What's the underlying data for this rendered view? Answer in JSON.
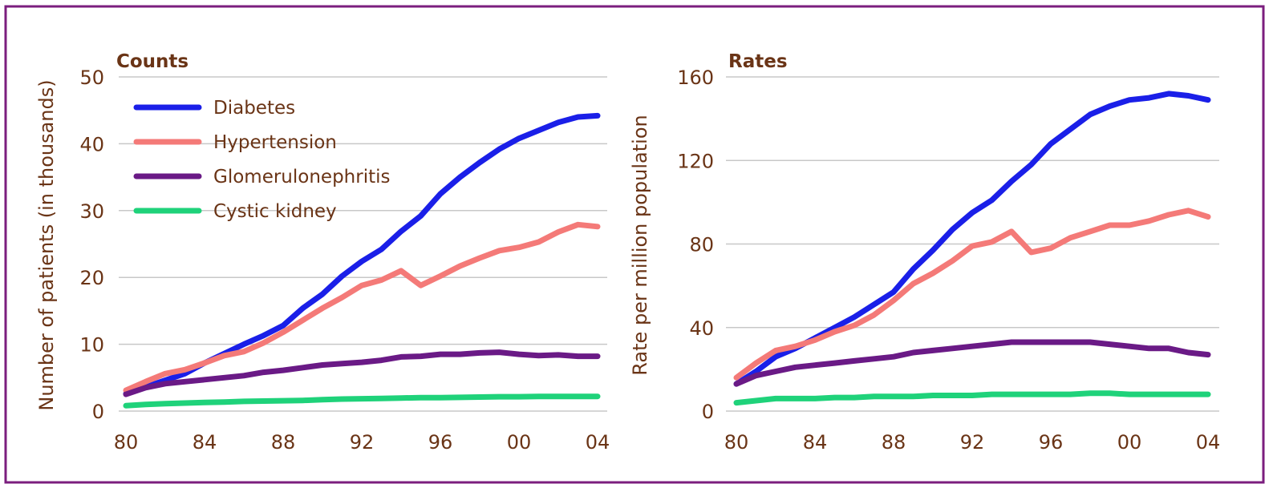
{
  "colors": {
    "frame": "#7b1e7e",
    "text": "#6a3416",
    "grid": "#c8c8c8",
    "diabetes": "#1a1fe8",
    "hypertension": "#f47a78",
    "glomerulonephritis": "#6a1a86",
    "cystic": "#1fd27a"
  },
  "legend": {
    "placement": "top-left of left panel",
    "items": [
      "Diabetes",
      "Hypertension",
      "Glomerulonephritis",
      "Cystic kidney"
    ]
  },
  "chart_data": [
    {
      "type": "line",
      "title": "Counts",
      "xlabel": "",
      "ylabel": "Number of patients (in thousands)",
      "x": [
        1980,
        1981,
        1982,
        1983,
        1984,
        1985,
        1986,
        1987,
        1988,
        1989,
        1990,
        1991,
        1992,
        1993,
        1994,
        1995,
        1996,
        1997,
        1998,
        1999,
        2000,
        2001,
        2002,
        2003,
        2004
      ],
      "xticks": [
        "80",
        "84",
        "88",
        "92",
        "96",
        "00",
        "04"
      ],
      "xtick_values": [
        1980,
        1984,
        1988,
        1992,
        1996,
        2000,
        2004
      ],
      "yticks": [
        "0",
        "10",
        "20",
        "30",
        "40",
        "50"
      ],
      "ylim": [
        0,
        50
      ],
      "grid": true,
      "series": [
        {
          "name": "Diabetes",
          "color": "#1a1fe8",
          "values": [
            2.6,
            3.6,
            4.6,
            5.6,
            7.2,
            8.6,
            10.0,
            11.3,
            12.8,
            15.4,
            17.5,
            20.2,
            22.4,
            24.2,
            26.9,
            29.2,
            32.5,
            35.0,
            37.2,
            39.2,
            40.8,
            42.0,
            43.2,
            44.0,
            44.2
          ]
        },
        {
          "name": "Hypertension",
          "color": "#f47a78",
          "values": [
            3.1,
            4.4,
            5.6,
            6.2,
            7.2,
            8.3,
            8.9,
            10.2,
            11.8,
            13.6,
            15.4,
            17.0,
            18.8,
            19.6,
            21.0,
            18.8,
            20.2,
            21.7,
            22.9,
            24.0,
            24.5,
            25.3,
            26.8,
            27.9,
            27.6
          ]
        },
        {
          "name": "Glomerulonephritis",
          "color": "#6a1a86",
          "values": [
            2.5,
            3.5,
            4.1,
            4.4,
            4.7,
            5.0,
            5.3,
            5.8,
            6.1,
            6.5,
            6.9,
            7.1,
            7.3,
            7.6,
            8.1,
            8.2,
            8.5,
            8.5,
            8.7,
            8.8,
            8.5,
            8.3,
            8.4,
            8.2,
            8.2
          ]
        },
        {
          "name": "Cystic kidney",
          "color": "#1fd27a",
          "values": [
            0.8,
            1.0,
            1.1,
            1.2,
            1.3,
            1.35,
            1.45,
            1.5,
            1.55,
            1.6,
            1.7,
            1.8,
            1.85,
            1.9,
            1.95,
            2.0,
            2.0,
            2.05,
            2.1,
            2.15,
            2.15,
            2.2,
            2.2,
            2.2,
            2.2
          ]
        }
      ]
    },
    {
      "type": "line",
      "title": "Rates",
      "xlabel": "",
      "ylabel": "Rate per million population",
      "x": [
        1980,
        1981,
        1982,
        1983,
        1984,
        1985,
        1986,
        1987,
        1988,
        1989,
        1990,
        1991,
        1992,
        1993,
        1994,
        1995,
        1996,
        1997,
        1998,
        1999,
        2000,
        2001,
        2002,
        2003,
        2004
      ],
      "xticks": [
        "80",
        "84",
        "88",
        "92",
        "96",
        "00",
        "04"
      ],
      "xtick_values": [
        1980,
        1984,
        1988,
        1992,
        1996,
        2000,
        2004
      ],
      "yticks": [
        "0",
        "40",
        "80",
        "120",
        "160"
      ],
      "ylim": [
        0,
        160
      ],
      "grid": true,
      "series": [
        {
          "name": "Diabetes",
          "color": "#1a1fe8",
          "values": [
            13,
            19,
            26,
            30,
            35,
            40,
            45,
            51,
            57,
            68,
            77,
            87,
            95,
            101,
            110,
            118,
            128,
            135,
            142,
            146,
            149,
            150,
            152,
            151,
            149
          ]
        },
        {
          "name": "Hypertension",
          "color": "#f47a78",
          "values": [
            16,
            23,
            29,
            31,
            34,
            38,
            41,
            46,
            53,
            61,
            66,
            72,
            79,
            81,
            86,
            76,
            78,
            83,
            86,
            89,
            89,
            91,
            94,
            96,
            93
          ]
        },
        {
          "name": "Glomerulonephritis",
          "color": "#6a1a86",
          "values": [
            13,
            17,
            19,
            21,
            22,
            23,
            24,
            25,
            26,
            28,
            29,
            30,
            31,
            32,
            33,
            33,
            33,
            33,
            33,
            32,
            31,
            30,
            30,
            28,
            27
          ]
        },
        {
          "name": "Cystic kidney",
          "color": "#1fd27a",
          "values": [
            4,
            5,
            6,
            6,
            6,
            6.5,
            6.5,
            7,
            7,
            7,
            7.5,
            7.5,
            7.5,
            8,
            8,
            8,
            8,
            8,
            8.5,
            8.5,
            8,
            8,
            8,
            8,
            8
          ]
        }
      ]
    }
  ]
}
